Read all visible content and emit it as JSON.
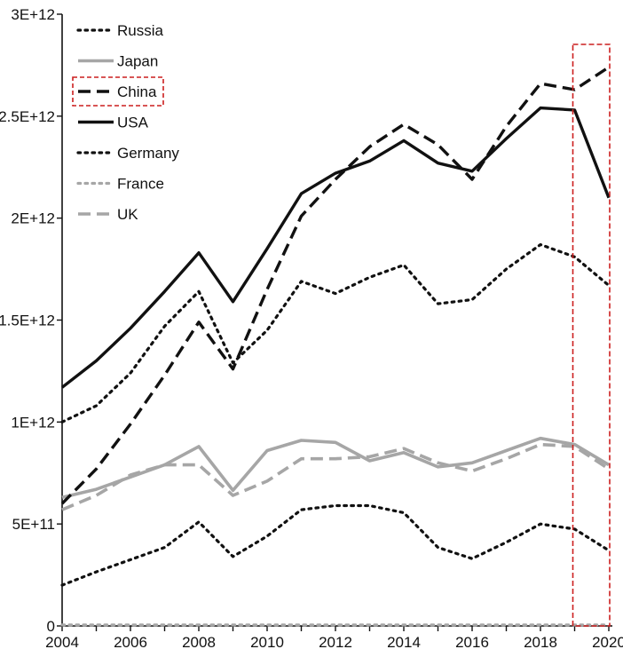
{
  "chart_data": {
    "type": "line",
    "title": "",
    "xlabel": "",
    "ylabel": "",
    "xlim": [
      2004,
      2020
    ],
    "ylim": [
      0,
      3000000000000
    ],
    "x": [
      2004,
      2005,
      2006,
      2007,
      2008,
      2009,
      2010,
      2011,
      2012,
      2013,
      2014,
      2015,
      2016,
      2017,
      2018,
      2019,
      2020
    ],
    "x_ticks": [
      2004,
      2006,
      2008,
      2010,
      2012,
      2014,
      2016,
      2018,
      2020
    ],
    "x_tick_labels": [
      "2004",
      "2006",
      "2008",
      "2010",
      "2012",
      "2014",
      "2016",
      "2018",
      "2020"
    ],
    "y_ticks": [
      0,
      500000000000,
      1000000000000,
      1500000000000,
      2000000000000,
      2500000000000,
      3000000000000
    ],
    "y_tick_labels": [
      "0",
      "5E+11",
      "1E+12",
      "1.5E+12",
      "2E+12",
      "2.5E+12",
      "3E+12"
    ],
    "grid": false,
    "legend_position": "top-left",
    "highlight_legend": "China",
    "highlight_x_range": [
      2019,
      2020
    ],
    "series": [
      {
        "name": "Russia",
        "color": "#111111",
        "style": "dotted",
        "width": 3.2,
        "values": [
          200000000000.0,
          265000000000.0,
          325000000000.0,
          385000000000.0,
          510000000000.0,
          340000000000.0,
          440000000000.0,
          570000000000.0,
          590000000000.0,
          590000000000.0,
          555000000000.0,
          385000000000.0,
          330000000000.0,
          410000000000.0,
          500000000000.0,
          475000000000.0,
          370000000000.0
        ]
      },
      {
        "name": "Japan",
        "color": "#a6a6a6",
        "style": "solid",
        "width": 3.6,
        "values": [
          630000000000.0,
          670000000000.0,
          730000000000.0,
          790000000000.0,
          880000000000.0,
          665000000000.0,
          860000000000.0,
          910000000000.0,
          900000000000.0,
          810000000000.0,
          850000000000.0,
          780000000000.0,
          800000000000.0,
          860000000000.0,
          920000000000.0,
          890000000000.0,
          790000000000.0
        ]
      },
      {
        "name": "China",
        "color": "#111111",
        "style": "dashed",
        "width": 3.4,
        "values": [
          600000000000.0,
          770000000000.0,
          990000000000.0,
          1230000000000.0,
          1490000000000.0,
          1260000000000.0,
          1650000000000.0,
          2010000000000.0,
          2190000000000.0,
          2350000000000.0,
          2460000000000.0,
          2360000000000.0,
          2190000000000.0,
          2450000000000.0,
          2660000000000.0,
          2630000000000.0,
          2740000000000.0
        ]
      },
      {
        "name": "USA",
        "color": "#111111",
        "style": "solid",
        "width": 3.4,
        "values": [
          1170000000000.0,
          1300000000000.0,
          1460000000000.0,
          1640000000000.0,
          1830000000000.0,
          1590000000000.0,
          1850000000000.0,
          2120000000000.0,
          2220000000000.0,
          2280000000000.0,
          2380000000000.0,
          2270000000000.0,
          2230000000000.0,
          2390000000000.0,
          2540000000000.0,
          2530000000000.0,
          2100000000000.0
        ]
      },
      {
        "name": "Germany",
        "color": "#111111",
        "style": "dotted",
        "width": 3.2,
        "values": [
          1000000000000.0,
          1080000000000.0,
          1240000000000.0,
          1470000000000.0,
          1640000000000.0,
          1290000000000.0,
          1450000000000.0,
          1690000000000.0,
          1630000000000.0,
          1710000000000.0,
          1770000000000.0,
          1580000000000.0,
          1600000000000.0,
          1750000000000.0,
          1870000000000.0,
          1810000000000.0,
          1670000000000.0
        ]
      },
      {
        "name": "France",
        "color": "#a6a6a6",
        "style": "dotted",
        "width": 3.2,
        "values": [
          5000000000.0,
          5000000000.0,
          5000000000.0,
          5000000000.0,
          5000000000.0,
          5000000000.0,
          5000000000.0,
          5000000000.0,
          5000000000.0,
          5000000000.0,
          5000000000.0,
          5000000000.0,
          5000000000.0,
          5000000000.0,
          5000000000.0,
          5000000000.0,
          5000000000.0
        ]
      },
      {
        "name": "UK",
        "color": "#a6a6a6",
        "style": "dashed",
        "width": 3.6,
        "values": [
          570000000000.0,
          640000000000.0,
          740000000000.0,
          790000000000.0,
          790000000000.0,
          640000000000.0,
          710000000000.0,
          820000000000.0,
          820000000000.0,
          830000000000.0,
          870000000000.0,
          800000000000.0,
          760000000000.0,
          820000000000.0,
          890000000000.0,
          880000000000.0,
          770000000000.0
        ]
      }
    ]
  }
}
